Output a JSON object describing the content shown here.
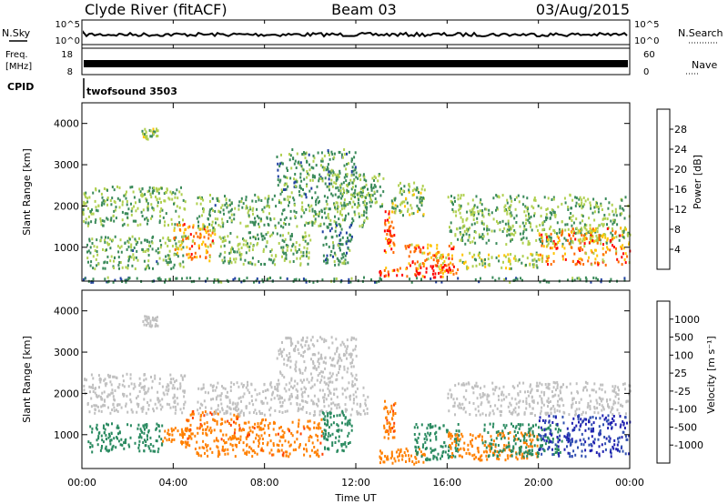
{
  "header": {
    "title": "Clyde River (fitACF)",
    "beam": "Beam 03",
    "date": "03/Aug/2015"
  },
  "strips": {
    "nsky": {
      "left_label": "N.Sky",
      "left_ticks": [
        "10^5",
        "10^0"
      ],
      "right_ticks": [
        "10^5",
        "10^0"
      ],
      "right_label": "N.Search"
    },
    "freq": {
      "left_label_line1": "Freq.",
      "left_label_line2": "[MHz]",
      "left_ticks": [
        "18",
        "8"
      ],
      "right_ticks": [
        "60",
        "0"
      ],
      "right_label": "Nave"
    },
    "cpid": {
      "label": "CPID",
      "value": "twofsound 3503"
    }
  },
  "x_axis": {
    "label": "Time UT",
    "ticks": [
      "00:00",
      "04:00",
      "08:00",
      "12:00",
      "16:00",
      "20:00",
      "00:00"
    ]
  },
  "panels": {
    "power": {
      "ylabel": "Slant Range [km]",
      "yticks": [
        "1000",
        "2000",
        "3000",
        "4000"
      ],
      "colorbar_label": "Power [dB]",
      "colorbar_ticks": [
        "28",
        "24",
        "20",
        "16",
        "12",
        "8",
        "4"
      ],
      "colorbar_colors": [
        "#ff0000",
        "#ff6a00",
        "#ffc400",
        "#b0d050",
        "#3a8a5a",
        "#2040a0",
        "#0000ff"
      ]
    },
    "velocity": {
      "ylabel": "Slant Range [km]",
      "yticks": [
        "1000",
        "2000",
        "3000",
        "4000"
      ],
      "colorbar_label": "Velocity [m s⁻¹]",
      "colorbar_ticks": [
        "1000",
        "500",
        "100",
        "25",
        "-25",
        "-100",
        "-500",
        "-1000"
      ],
      "colorbar_colors": [
        "#2020b0",
        "#3050b0",
        "#2a8a60",
        "#50c040",
        "#c0c0c0",
        "#f0d000",
        "#ff8000",
        "#ff4000",
        "#ff0000"
      ]
    }
  },
  "chart_data": [
    {
      "type": "heatmap",
      "title": "Power",
      "xlabel": "Time UT",
      "ylabel": "Slant Range [km]",
      "xlim": [
        0,
        24
      ],
      "ylim": [
        180,
        4500
      ],
      "colorbar": {
        "label": "Power [dB]",
        "range": [
          0,
          32
        ]
      },
      "regions": [
        {
          "t0": 0.0,
          "t1": 4.5,
          "r0": 1550,
          "r1": 2500,
          "level": 14
        },
        {
          "t0": 0.2,
          "t1": 4.5,
          "r0": 500,
          "r1": 1300,
          "level": 13
        },
        {
          "t0": 2.6,
          "t1": 3.3,
          "r0": 3650,
          "r1": 3900,
          "level": 16
        },
        {
          "t0": 4.0,
          "t1": 5.8,
          "r0": 700,
          "r1": 1600,
          "level": 22
        },
        {
          "t0": 5.0,
          "t1": 12.5,
          "r0": 1500,
          "r1": 2300,
          "level": 13
        },
        {
          "t0": 6.0,
          "t1": 10.0,
          "r0": 600,
          "r1": 1400,
          "level": 14
        },
        {
          "t0": 8.5,
          "t1": 12.0,
          "r0": 2300,
          "r1": 3400,
          "level": 12
        },
        {
          "t0": 10.5,
          "t1": 11.8,
          "r0": 600,
          "r1": 1600,
          "level": 11
        },
        {
          "t0": 11.0,
          "t1": 13.2,
          "r0": 2000,
          "r1": 2800,
          "level": 13
        },
        {
          "t0": 13.0,
          "t1": 16.5,
          "r0": 300,
          "r1": 600,
          "level": 29
        },
        {
          "t0": 13.2,
          "t1": 13.7,
          "r0": 900,
          "r1": 1900,
          "level": 26
        },
        {
          "t0": 13.5,
          "t1": 15.0,
          "r0": 1800,
          "r1": 2600,
          "level": 15
        },
        {
          "t0": 14.0,
          "t1": 16.3,
          "r0": 550,
          "r1": 1100,
          "level": 22
        },
        {
          "t0": 16.0,
          "t1": 24.0,
          "r0": 1100,
          "r1": 2300,
          "level": 14
        },
        {
          "t0": 20.0,
          "t1": 24.0,
          "r0": 600,
          "r1": 1500,
          "level": 23
        },
        {
          "t0": 16.5,
          "t1": 20.0,
          "r0": 500,
          "r1": 900,
          "level": 17
        },
        {
          "t0": 0.0,
          "t1": 24.0,
          "r0": 180,
          "r1": 300,
          "level": 11
        }
      ]
    },
    {
      "type": "heatmap",
      "title": "Velocity",
      "xlabel": "Time UT",
      "ylabel": "Slant Range [km]",
      "xlim": [
        0,
        24
      ],
      "ylim": [
        180,
        4500
      ],
      "colorbar": {
        "label": "Velocity [m s⁻¹]",
        "range": [
          -1000,
          1000
        ]
      },
      "regions": [
        {
          "t0": 0.0,
          "t1": 4.5,
          "r0": 1550,
          "r1": 2500,
          "level": 0
        },
        {
          "t0": 0.2,
          "t1": 3.5,
          "r0": 600,
          "r1": 1300,
          "level": 150
        },
        {
          "t0": 2.6,
          "t1": 3.3,
          "r0": 3650,
          "r1": 3900,
          "level": 0
        },
        {
          "t0": 3.5,
          "t1": 4.8,
          "r0": 800,
          "r1": 1200,
          "level": -300
        },
        {
          "t0": 4.5,
          "t1": 7.0,
          "r0": 500,
          "r1": 1600,
          "level": -400
        },
        {
          "t0": 5.0,
          "t1": 12.5,
          "r0": 1500,
          "r1": 2300,
          "level": 0
        },
        {
          "t0": 7.0,
          "t1": 10.5,
          "r0": 500,
          "r1": 1400,
          "level": -400
        },
        {
          "t0": 8.5,
          "t1": 12.0,
          "r0": 2300,
          "r1": 3400,
          "level": 0
        },
        {
          "t0": 10.5,
          "t1": 11.8,
          "r0": 600,
          "r1": 1600,
          "level": 120
        },
        {
          "t0": 13.0,
          "t1": 15.0,
          "r0": 300,
          "r1": 700,
          "level": -200
        },
        {
          "t0": 13.2,
          "t1": 13.7,
          "r0": 900,
          "r1": 1900,
          "level": -400
        },
        {
          "t0": 14.5,
          "t1": 16.5,
          "r0": 400,
          "r1": 1300,
          "level": 200
        },
        {
          "t0": 16.0,
          "t1": 20.0,
          "r0": 400,
          "r1": 1100,
          "level": -300
        },
        {
          "t0": 16.0,
          "t1": 24.0,
          "r0": 1500,
          "r1": 2300,
          "level": 0
        },
        {
          "t0": 17.5,
          "t1": 21.0,
          "r0": 500,
          "r1": 1300,
          "level": 200
        },
        {
          "t0": 20.0,
          "t1": 24.0,
          "r0": 500,
          "r1": 1500,
          "level": 700
        }
      ]
    }
  ]
}
